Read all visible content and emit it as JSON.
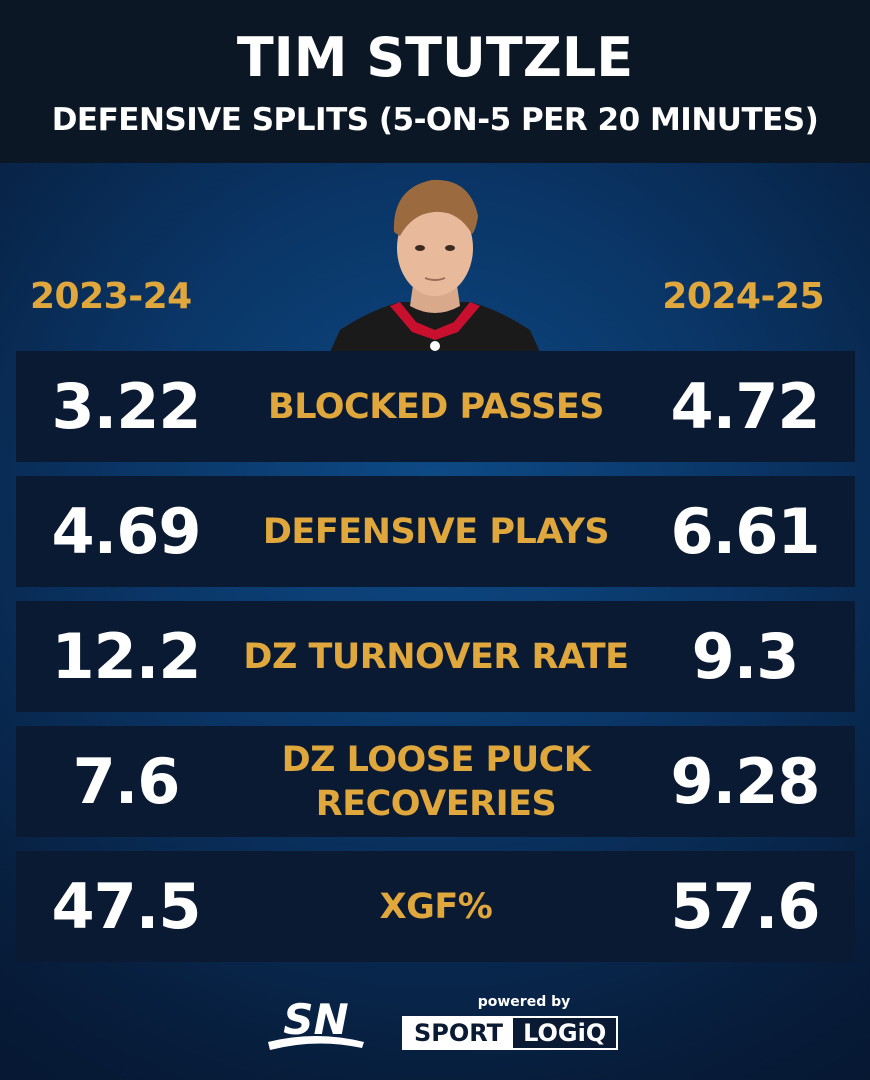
{
  "header": {
    "title": "TIM STUTZLE",
    "subtitle": "DEFENSIVE SPLITS (5-ON-5 PER 20 MINUTES)"
  },
  "seasons": {
    "left": "2023-24",
    "right": "2024-25"
  },
  "rows": [
    {
      "label": "BLOCKED PASSES",
      "left": "3.22",
      "right": "4.72"
    },
    {
      "label": "DEFENSIVE PLAYS",
      "left": "4.69",
      "right": "6.61"
    },
    {
      "label": "DZ TURNOVER RATE",
      "left": "12.2",
      "right": "9.3"
    },
    {
      "label": "DZ LOOSE PUCK RECOVERIES",
      "label_line1": "DZ LOOSE PUCK",
      "label_line2": "RECOVERIES",
      "left": "7.6",
      "right": "9.28"
    },
    {
      "label": "XGF%",
      "left": "47.5",
      "right": "57.6"
    }
  ],
  "footer": {
    "sn_logo": "SN",
    "powered_by": "powered by",
    "sponsor_part1": "SPORT",
    "sponsor_part2": "LOGiQ"
  },
  "colors": {
    "accent_gold": "#e0a83c",
    "header_bg": "#0c1726",
    "row_bg": "#0a1a33"
  }
}
